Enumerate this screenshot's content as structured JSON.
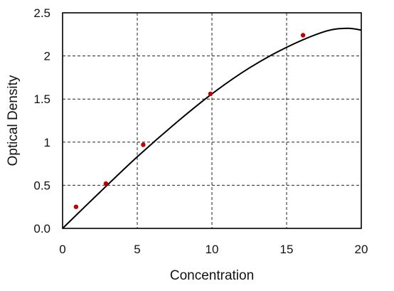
{
  "chart_data": {
    "type": "scatter",
    "xlabel": "Concentration",
    "ylabel": "Optical Density",
    "xlim": [
      0,
      20
    ],
    "ylim": [
      0,
      2.5
    ],
    "x_ticks": [
      "0",
      "5",
      "10",
      "15",
      "20"
    ],
    "y_ticks": [
      "0.0",
      "0.5",
      "1",
      "1.5",
      "2",
      "2.5"
    ],
    "grid": true,
    "legend": "none",
    "points": [
      {
        "x": 0.9,
        "y": 0.25
      },
      {
        "x": 2.9,
        "y": 0.52
      },
      {
        "x": 5.4,
        "y": 0.97
      },
      {
        "x": 9.9,
        "y": 1.56
      },
      {
        "x": 16.1,
        "y": 2.24
      }
    ],
    "fit_curve": [
      {
        "x": 0,
        "y": 0
      },
      {
        "x": 2.5,
        "y": 0.42
      },
      {
        "x": 5,
        "y": 0.83
      },
      {
        "x": 7.5,
        "y": 1.21
      },
      {
        "x": 10,
        "y": 1.56
      },
      {
        "x": 12.5,
        "y": 1.86
      },
      {
        "x": 15,
        "y": 2.1
      },
      {
        "x": 17.5,
        "y": 2.28
      },
      {
        "x": 19,
        "y": 2.32
      },
      {
        "x": 20,
        "y": 2.3
      }
    ],
    "colors": {
      "points": "#c00000",
      "curve": "#000000",
      "grid": "#222222"
    }
  }
}
